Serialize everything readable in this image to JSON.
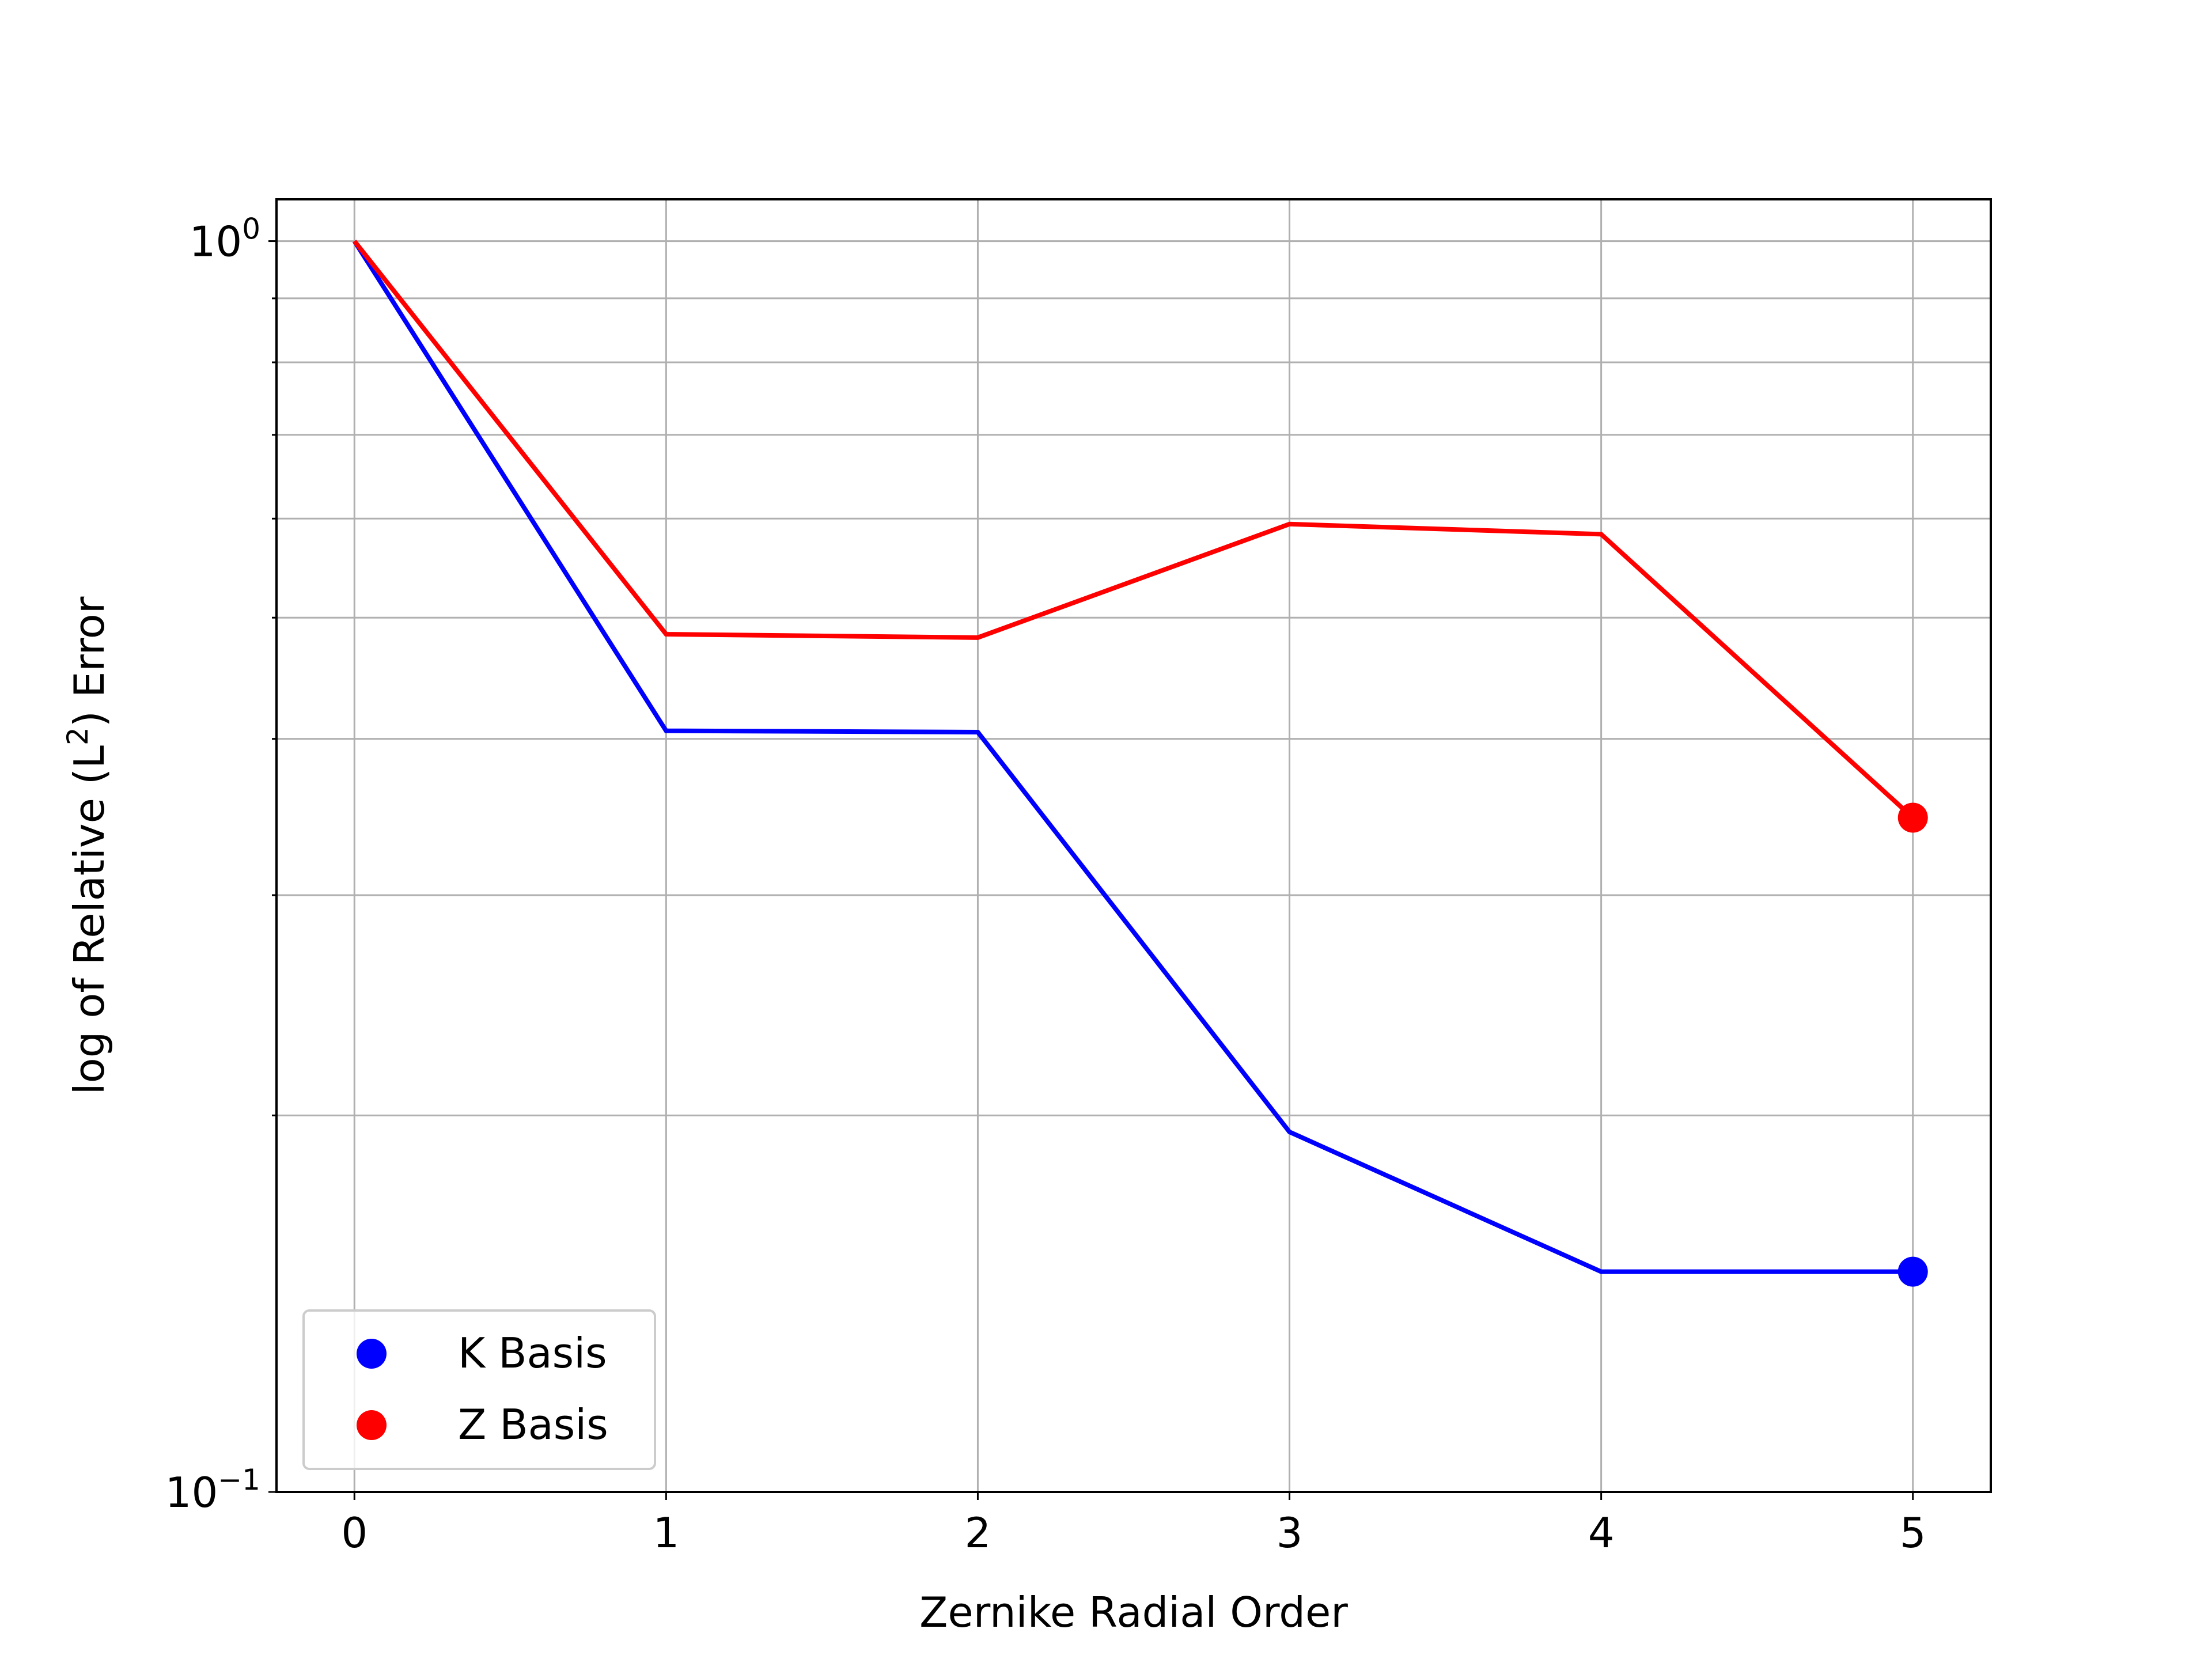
{
  "chart_data": {
    "type": "line",
    "xlabel": "Zernike Radial Order",
    "ylabel_main": "log of Relative (L",
    "ylabel_sup": "2",
    "ylabel_tail": ") Error",
    "x": [
      0,
      1,
      2,
      3,
      4,
      5
    ],
    "xticks": [
      "0",
      "1",
      "2",
      "3",
      "4",
      "5"
    ],
    "yscale": "log",
    "ylim": [
      0.1,
      1.08
    ],
    "xlim": [
      -0.25,
      5.25
    ],
    "yticks": [
      {
        "value": 1,
        "base": "10",
        "exp": "0"
      },
      {
        "value": 0.1,
        "base": "10",
        "exp": "−1"
      }
    ],
    "grid": true,
    "legend_position": "lower left",
    "series": [
      {
        "name": "K Basis",
        "color": "#0000ff",
        "values": [
          1.0,
          0.406,
          0.405,
          0.194,
          0.15,
          0.15
        ]
      },
      {
        "name": "Z Basis",
        "color": "#ff0000",
        "values": [
          1.0,
          0.485,
          0.482,
          0.594,
          0.583,
          0.346
        ]
      }
    ]
  }
}
